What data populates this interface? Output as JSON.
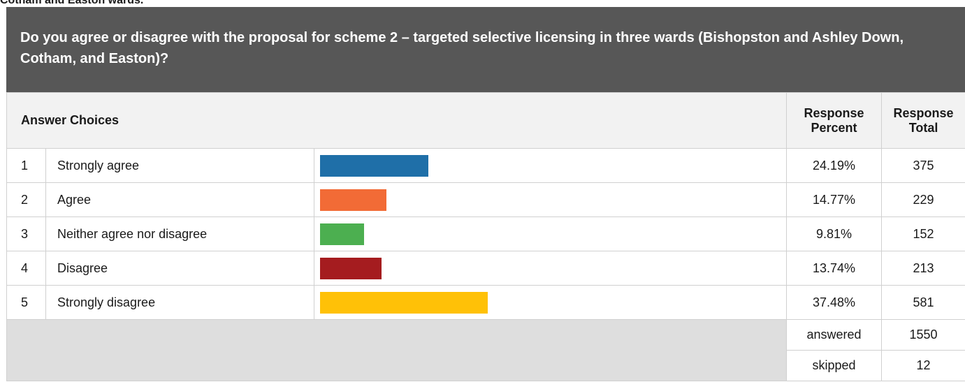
{
  "section_heading": "Cotham and Easton wards.",
  "question": "Do you agree or disagree with the proposal for scheme 2 – targeted selective licensing in three wards (Bishopston and Ashley Down, Cotham, and Easton)?",
  "table": {
    "header": {
      "answer_choices": "Answer Choices",
      "response_percent_line1": "Response",
      "response_percent_line2": "Percent",
      "response_total_line1": "Response",
      "response_total_line2": "Total"
    },
    "rows": [
      {
        "index": "1",
        "label": "Strongly agree",
        "percent": "24.19%",
        "percent_value": 24.19,
        "total": "375",
        "color": "#1f6fa8"
      },
      {
        "index": "2",
        "label": "Agree",
        "percent": "14.77%",
        "percent_value": 14.77,
        "total": "229",
        "color": "#f26b36"
      },
      {
        "index": "3",
        "label": "Neither agree nor disagree",
        "percent": "9.81%",
        "percent_value": 9.81,
        "total": "152",
        "color": "#4caf50"
      },
      {
        "index": "4",
        "label": "Disagree",
        "percent": "13.74%",
        "percent_value": 13.74,
        "total": "213",
        "color": "#a51c1f"
      },
      {
        "index": "5",
        "label": "Strongly disagree",
        "percent": "37.48%",
        "percent_value": 37.48,
        "total": "581",
        "color": "#ffc107"
      }
    ],
    "summary": {
      "answered_label": "answered",
      "answered_value": "1550",
      "skipped_label": "skipped",
      "skipped_value": "12"
    }
  }
}
